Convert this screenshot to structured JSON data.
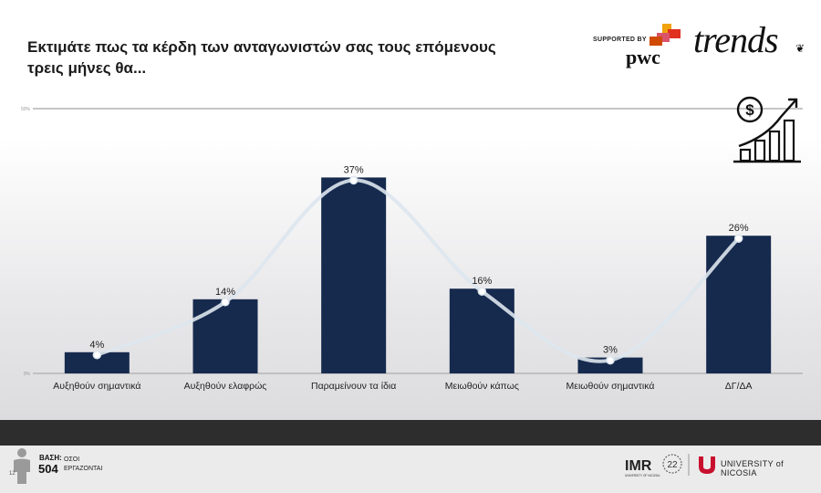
{
  "header": {
    "title": "Εκτιμάτε πως τα κέρδη των ανταγωνιστών σας τους επόμενους τρεις μήνες θα...",
    "supported_by": "SUPPORTED BY",
    "pwc_label": "pwc",
    "brand": "trends"
  },
  "chart_data": {
    "type": "bar",
    "title": "Εκτιμάτε πως τα κέρδη των ανταγωνιστών σας τους επόμενους τρεις μήνες θα...",
    "categories": [
      "Αυξηθούν σημαντικά",
      "Αυξηθούν ελαφρώς",
      "Παραμείνουν τα ίδια",
      "Μειωθούν κάπως",
      "Μειωθούν σημαντικά",
      "ΔΓ/ΔΑ"
    ],
    "values": [
      4,
      14,
      37,
      16,
      3,
      26
    ],
    "value_labels": [
      "4%",
      "14%",
      "37%",
      "16%",
      "3%",
      "26%"
    ],
    "ylim": [
      0,
      50
    ],
    "y_ticks": [
      "0%",
      "50%"
    ],
    "bar_color": "#162a4e",
    "overlay_line": "smooth curve through bar tops",
    "line_color": "#dde6ee"
  },
  "footer": {
    "basis_label": "ΒΑΣΗ:",
    "basis_value": "504",
    "basis_desc_1": "ΟΣΟΙ",
    "basis_desc_2": "ΕΡΓΑΖΟΝΤΑΙ",
    "page_number": "12",
    "imr_label": "IMR",
    "imr_sub": "UNIVERSITY OF NICOSIA",
    "imr_years": "22",
    "university": "UNIVERSITY of NICOSIA"
  }
}
